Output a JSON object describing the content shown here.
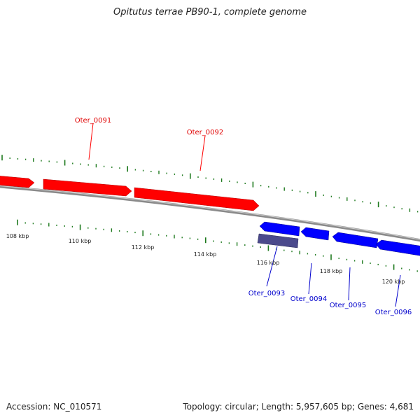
{
  "title": "Opitutus terrae PB90-1, complete genome",
  "accession": "Accession: NC_010571",
  "summary": "Topology: circular; Length: 5,957,605 bp; Genes: 4,681",
  "colors": {
    "forward_gene": "#ff0000",
    "reverse_gene": "#0000ff",
    "other_feature": "#4b4a8c",
    "backbone": "#8a8a8a",
    "tick": "#1e7a1e"
  },
  "scale_labels": [
    "108 kbp",
    "110 kbp",
    "112 kbp",
    "114 kbp",
    "116 kbp",
    "118 kbp",
    "120 kbp"
  ],
  "genes": [
    {
      "id": "Oter_0091",
      "strand": "forward"
    },
    {
      "id": "Oter_0092",
      "strand": "forward"
    },
    {
      "id": "Oter_0093",
      "strand": "reverse"
    },
    {
      "id": "Oter_0094",
      "strand": "reverse"
    },
    {
      "id": "Oter_0095",
      "strand": "reverse"
    },
    {
      "id": "Oter_0096",
      "strand": "reverse"
    }
  ]
}
